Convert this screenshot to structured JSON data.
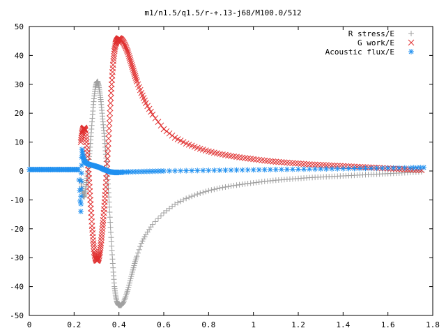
{
  "chart_data": {
    "type": "scatter",
    "title": "m1/n1.5/q1.5/r-+.13-j68/M100.0/512",
    "xlabel": "",
    "ylabel": "",
    "xlim": [
      0,
      1.8
    ],
    "ylim": [
      -50,
      50
    ],
    "x_ticks": [
      0,
      0.2,
      0.4,
      0.6,
      0.8,
      1,
      1.2,
      1.4,
      1.6,
      1.8
    ],
    "x_tick_labels": [
      "0",
      "0.2",
      "0.4",
      "0.6",
      "0.8",
      "1",
      "1.2",
      "1.4",
      "1.6",
      "1.8"
    ],
    "y_ticks": [
      -50,
      -40,
      -30,
      -20,
      -10,
      0,
      10,
      20,
      30,
      40,
      50
    ],
    "y_tick_labels": [
      "-50",
      "-40",
      "-30",
      "-20",
      "-10",
      "0",
      "10",
      "20",
      "30",
      "40",
      "50"
    ],
    "grid": false,
    "legend_position": "top-right",
    "series": [
      {
        "name": "R stress/E",
        "marker": "plus",
        "color": "#a0a0a0",
        "points": [
          [
            0.23,
            -3
          ],
          [
            0.235,
            -6
          ],
          [
            0.24,
            -8.5
          ],
          [
            0.245,
            -9
          ],
          [
            0.25,
            -7
          ],
          [
            0.255,
            -4
          ],
          [
            0.26,
            -1
          ],
          [
            0.265,
            3
          ],
          [
            0.27,
            7
          ],
          [
            0.275,
            12
          ],
          [
            0.28,
            17
          ],
          [
            0.285,
            22
          ],
          [
            0.29,
            26
          ],
          [
            0.295,
            29
          ],
          [
            0.3,
            30.5
          ],
          [
            0.305,
            31
          ],
          [
            0.31,
            29.5
          ],
          [
            0.315,
            27
          ],
          [
            0.32,
            24
          ],
          [
            0.325,
            20
          ],
          [
            0.33,
            16
          ],
          [
            0.335,
            12
          ],
          [
            0.34,
            7
          ],
          [
            0.345,
            2
          ],
          [
            0.35,
            -3
          ],
          [
            0.355,
            -9
          ],
          [
            0.36,
            -16
          ],
          [
            0.365,
            -23
          ],
          [
            0.37,
            -29
          ],
          [
            0.375,
            -35
          ],
          [
            0.38,
            -40
          ],
          [
            0.385,
            -43
          ],
          [
            0.39,
            -45
          ],
          [
            0.395,
            -46
          ],
          [
            0.4,
            -46.5
          ],
          [
            0.41,
            -46.5
          ],
          [
            0.42,
            -45.5
          ],
          [
            0.43,
            -43.5
          ],
          [
            0.44,
            -41
          ],
          [
            0.45,
            -38
          ],
          [
            0.46,
            -35
          ],
          [
            0.47,
            -32
          ],
          [
            0.48,
            -29.5
          ],
          [
            0.5,
            -25
          ],
          [
            0.52,
            -22
          ],
          [
            0.55,
            -18.5
          ],
          [
            0.6,
            -14.5
          ],
          [
            0.65,
            -11.5
          ],
          [
            0.7,
            -9.5
          ],
          [
            0.75,
            -8
          ],
          [
            0.8,
            -6.8
          ],
          [
            0.85,
            -5.9
          ],
          [
            0.9,
            -5.2
          ],
          [
            0.95,
            -4.6
          ],
          [
            1.0,
            -4.1
          ],
          [
            1.05,
            -3.6
          ],
          [
            1.1,
            -3.2
          ],
          [
            1.15,
            -2.9
          ],
          [
            1.2,
            -2.6
          ],
          [
            1.25,
            -2.3
          ],
          [
            1.3,
            -2.1
          ],
          [
            1.35,
            -1.9
          ],
          [
            1.4,
            -1.7
          ],
          [
            1.45,
            -1.5
          ],
          [
            1.5,
            -1.3
          ],
          [
            1.55,
            -1.1
          ],
          [
            1.6,
            -0.9
          ],
          [
            1.65,
            -0.7
          ],
          [
            1.7,
            -0.5
          ],
          [
            1.75,
            -0.3
          ]
        ]
      },
      {
        "name": "G work/E",
        "marker": "cross",
        "color": "#e03030",
        "points": [
          [
            0.23,
            10
          ],
          [
            0.235,
            13
          ],
          [
            0.24,
            14.5
          ],
          [
            0.245,
            15
          ],
          [
            0.25,
            14
          ],
          [
            0.255,
            10
          ],
          [
            0.26,
            5
          ],
          [
            0.265,
            -1
          ],
          [
            0.27,
            -7
          ],
          [
            0.275,
            -13
          ],
          [
            0.28,
            -19
          ],
          [
            0.285,
            -24
          ],
          [
            0.29,
            -28
          ],
          [
            0.295,
            -30
          ],
          [
            0.3,
            -31
          ],
          [
            0.305,
            -31
          ],
          [
            0.31,
            -30
          ],
          [
            0.315,
            -28
          ],
          [
            0.32,
            -25
          ],
          [
            0.325,
            -21
          ],
          [
            0.33,
            -17
          ],
          [
            0.335,
            -12
          ],
          [
            0.34,
            -7
          ],
          [
            0.345,
            -1
          ],
          [
            0.35,
            6
          ],
          [
            0.355,
            13
          ],
          [
            0.36,
            20
          ],
          [
            0.365,
            27
          ],
          [
            0.37,
            33
          ],
          [
            0.375,
            38
          ],
          [
            0.38,
            41.5
          ],
          [
            0.385,
            44
          ],
          [
            0.39,
            45
          ],
          [
            0.395,
            45.5
          ],
          [
            0.4,
            46
          ],
          [
            0.41,
            45.5
          ],
          [
            0.42,
            44.5
          ],
          [
            0.43,
            43
          ],
          [
            0.44,
            41
          ],
          [
            0.45,
            38.5
          ],
          [
            0.46,
            36
          ],
          [
            0.47,
            33.5
          ],
          [
            0.48,
            31
          ],
          [
            0.5,
            27
          ],
          [
            0.52,
            23.5
          ],
          [
            0.55,
            19.5
          ],
          [
            0.6,
            14.5
          ],
          [
            0.65,
            11.5
          ],
          [
            0.7,
            9.5
          ],
          [
            0.75,
            8
          ],
          [
            0.8,
            6.8
          ],
          [
            0.85,
            5.9
          ],
          [
            0.9,
            5.2
          ],
          [
            0.95,
            4.6
          ],
          [
            1.0,
            4.1
          ],
          [
            1.05,
            3.6
          ],
          [
            1.1,
            3.2
          ],
          [
            1.15,
            2.9
          ],
          [
            1.2,
            2.6
          ],
          [
            1.25,
            2.3
          ],
          [
            1.3,
            2.1
          ],
          [
            1.35,
            1.9
          ],
          [
            1.4,
            1.7
          ],
          [
            1.45,
            1.5
          ],
          [
            1.5,
            1.3
          ],
          [
            1.55,
            1.1
          ],
          [
            1.6,
            0.9
          ],
          [
            1.65,
            0.7
          ],
          [
            1.7,
            0.5
          ],
          [
            1.75,
            0.3
          ]
        ]
      },
      {
        "name": "Acoustic flux/E",
        "marker": "star",
        "color": "#2090f0",
        "points": [
          [
            0.0,
            0.5
          ],
          [
            0.02,
            0.5
          ],
          [
            0.04,
            0.5
          ],
          [
            0.06,
            0.5
          ],
          [
            0.08,
            0.5
          ],
          [
            0.1,
            0.5
          ],
          [
            0.12,
            0.5
          ],
          [
            0.14,
            0.5
          ],
          [
            0.16,
            0.5
          ],
          [
            0.18,
            0.5
          ],
          [
            0.2,
            0.5
          ],
          [
            0.22,
            0.5
          ],
          [
            0.23,
            -14
          ],
          [
            0.232,
            -3.5
          ],
          [
            0.235,
            7.5
          ],
          [
            0.24,
            5
          ],
          [
            0.245,
            3.5
          ],
          [
            0.25,
            3
          ],
          [
            0.26,
            2.5
          ],
          [
            0.27,
            2.2
          ],
          [
            0.28,
            2
          ],
          [
            0.29,
            1.8
          ],
          [
            0.3,
            1.6
          ],
          [
            0.31,
            1.3
          ],
          [
            0.32,
            1
          ],
          [
            0.33,
            0.6
          ],
          [
            0.34,
            0.3
          ],
          [
            0.35,
            0
          ],
          [
            0.36,
            -0.3
          ],
          [
            0.37,
            -0.4
          ],
          [
            0.38,
            -0.5
          ],
          [
            0.39,
            -0.5
          ],
          [
            0.4,
            -0.5
          ],
          [
            0.42,
            -0.4
          ],
          [
            0.45,
            -0.3
          ],
          [
            0.5,
            -0.2
          ],
          [
            0.55,
            -0.1
          ],
          [
            0.6,
            0
          ],
          [
            0.7,
            0.1
          ],
          [
            0.8,
            0.2
          ],
          [
            0.9,
            0.3
          ],
          [
            1.0,
            0.4
          ],
          [
            1.1,
            0.5
          ],
          [
            1.2,
            0.6
          ],
          [
            1.3,
            0.7
          ],
          [
            1.4,
            0.8
          ],
          [
            1.5,
            0.9
          ],
          [
            1.6,
            1.0
          ],
          [
            1.7,
            1.1
          ],
          [
            1.76,
            1.2
          ]
        ]
      }
    ]
  }
}
